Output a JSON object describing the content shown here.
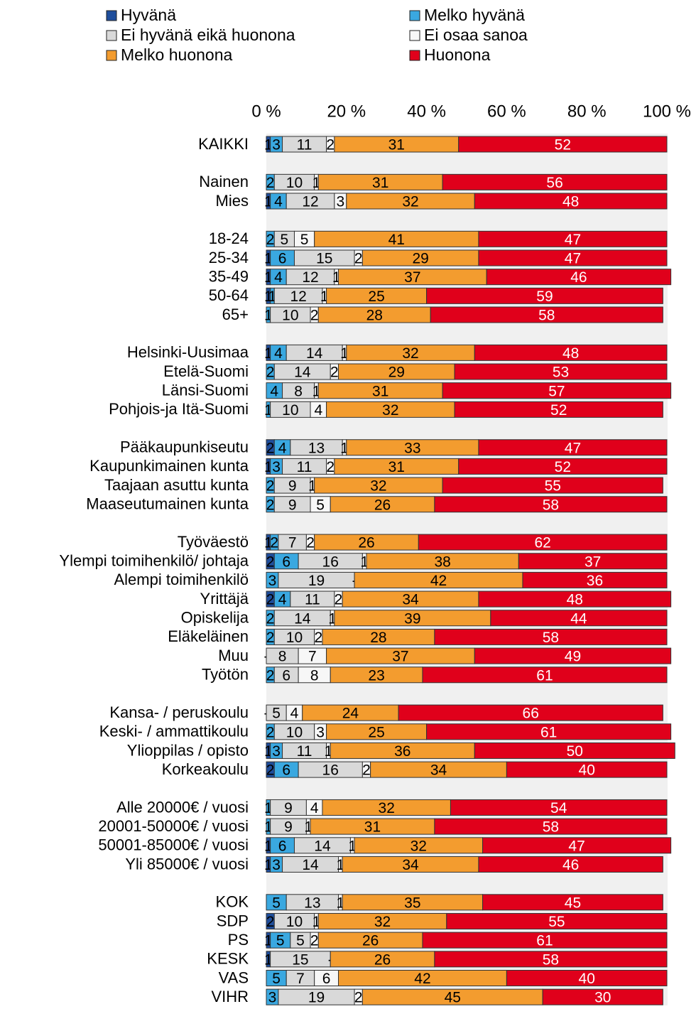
{
  "chart_data": {
    "type": "stacked-bar-horizontal",
    "categories": [
      "KAIKKI",
      null,
      "Nainen",
      "Mies",
      null,
      "18-24",
      "25-34",
      "35-49",
      "50-64",
      "65+",
      null,
      "Helsinki-Uusimaa",
      "Etelä-Suomi",
      "Länsi-Suomi",
      "Pohjois-ja Itä-Suomi",
      null,
      "Pääkaupunkiseutu",
      "Kaupunkimainen kunta",
      "Taajaan asuttu kunta",
      "Maaseutumainen kunta",
      null,
      "Työväestö",
      "Ylempi toimihenkilö/ johtaja",
      "Alempi toimihenkilö",
      "Yrittäjä",
      "Opiskelija",
      "Eläkeläinen",
      "Muu",
      "Työtön",
      null,
      "Kansa- / peruskoulu",
      "Keski- / ammattikoulu",
      "Ylioppilas / opisto",
      "Korkeakoulu",
      null,
      "Alle 20000€ / vuosi",
      "20001-50000€ / vuosi",
      "50001-85000€ / vuosi",
      "Yli 85000€ / vuosi",
      null,
      "KOK",
      "SDP",
      "PS",
      "KESK",
      "VAS",
      "VIHR"
    ],
    "series": [
      {
        "name": "Hyvänä",
        "color": "#1f4e9c",
        "values": [
          1,
          null,
          null,
          1,
          null,
          null,
          1,
          1,
          1,
          null,
          null,
          1,
          null,
          null,
          null,
          null,
          2,
          1,
          null,
          null,
          null,
          1,
          2,
          null,
          2,
          null,
          null,
          null,
          null,
          null,
          null,
          null,
          1,
          2,
          null,
          null,
          null,
          1,
          1,
          null,
          null,
          2,
          1,
          1,
          null,
          null
        ]
      },
      {
        "name": "Melko hyvänä",
        "color": "#3aa8e0",
        "values": [
          3,
          null,
          2,
          4,
          null,
          2,
          6,
          4,
          1,
          1,
          null,
          4,
          2,
          4,
          1,
          null,
          4,
          3,
          2,
          2,
          null,
          2,
          6,
          3,
          4,
          2,
          2,
          0,
          2,
          null,
          0,
          2,
          3,
          6,
          null,
          1,
          1,
          6,
          3,
          null,
          5,
          null,
          5,
          null,
          5,
          3
        ],
        "value_labels": [
          null,
          null,
          null,
          null,
          null,
          null,
          null,
          null,
          null,
          null,
          null,
          null,
          null,
          null,
          null,
          null,
          null,
          null,
          null,
          null,
          null,
          null,
          null,
          null,
          null,
          null,
          null,
          "-",
          null,
          null,
          "-",
          null,
          null,
          null,
          null,
          null,
          null,
          null,
          null,
          null,
          null,
          null,
          null,
          null,
          null,
          null
        ]
      },
      {
        "name": "Ei hyvänä eikä huonona",
        "color": "#d9d9d9",
        "values": [
          11,
          null,
          10,
          12,
          null,
          5,
          15,
          12,
          12,
          10,
          null,
          14,
          14,
          8,
          10,
          null,
          13,
          11,
          9,
          9,
          null,
          7,
          16,
          19,
          11,
          14,
          10,
          8,
          6,
          null,
          5,
          10,
          11,
          16,
          null,
          9,
          9,
          14,
          14,
          null,
          13,
          10,
          5,
          15,
          7,
          19
        ]
      },
      {
        "name": "Ei osaa sanoa",
        "color": "#f7f7f7",
        "values": [
          2,
          null,
          1,
          3,
          null,
          5,
          2,
          1,
          1,
          2,
          null,
          1,
          2,
          1,
          4,
          null,
          1,
          2,
          1,
          5,
          null,
          2,
          1,
          0,
          2,
          1,
          2,
          7,
          8,
          null,
          4,
          3,
          1,
          2,
          null,
          4,
          1,
          1,
          1,
          null,
          1,
          1,
          2,
          0,
          6,
          2
        ],
        "value_labels": [
          null,
          null,
          null,
          null,
          null,
          null,
          null,
          null,
          null,
          null,
          null,
          null,
          null,
          null,
          null,
          null,
          null,
          null,
          null,
          null,
          null,
          null,
          null,
          "-",
          null,
          null,
          null,
          null,
          null,
          null,
          null,
          null,
          null,
          null,
          null,
          null,
          null,
          null,
          null,
          null,
          null,
          null,
          null,
          "-",
          null,
          null
        ]
      },
      {
        "name": "Melko huonona",
        "color": "#f39c2f",
        "values": [
          31,
          null,
          31,
          32,
          null,
          41,
          29,
          37,
          25,
          28,
          null,
          32,
          29,
          31,
          32,
          null,
          33,
          31,
          32,
          26,
          null,
          26,
          38,
          42,
          34,
          39,
          28,
          37,
          23,
          null,
          24,
          25,
          36,
          34,
          null,
          32,
          31,
          32,
          34,
          null,
          35,
          32,
          26,
          26,
          42,
          45
        ]
      },
      {
        "name": "Huonona",
        "color": "#e0001b",
        "values": [
          52,
          null,
          56,
          48,
          null,
          47,
          47,
          46,
          59,
          58,
          null,
          48,
          53,
          57,
          52,
          null,
          47,
          52,
          55,
          58,
          null,
          62,
          37,
          36,
          48,
          44,
          58,
          49,
          61,
          null,
          66,
          61,
          50,
          40,
          null,
          54,
          58,
          47,
          46,
          null,
          45,
          55,
          61,
          58,
          40,
          30
        ]
      }
    ],
    "xlim": [
      0,
      100
    ],
    "xticks": [
      {
        "value": 0,
        "label": "0 %"
      },
      {
        "value": 20,
        "label": "20 %"
      },
      {
        "value": 40,
        "label": "40 %"
      },
      {
        "value": 60,
        "label": "60 %"
      },
      {
        "value": 80,
        "label": "80 %"
      },
      {
        "value": 100,
        "label": "100 %"
      }
    ],
    "legend": "top"
  }
}
